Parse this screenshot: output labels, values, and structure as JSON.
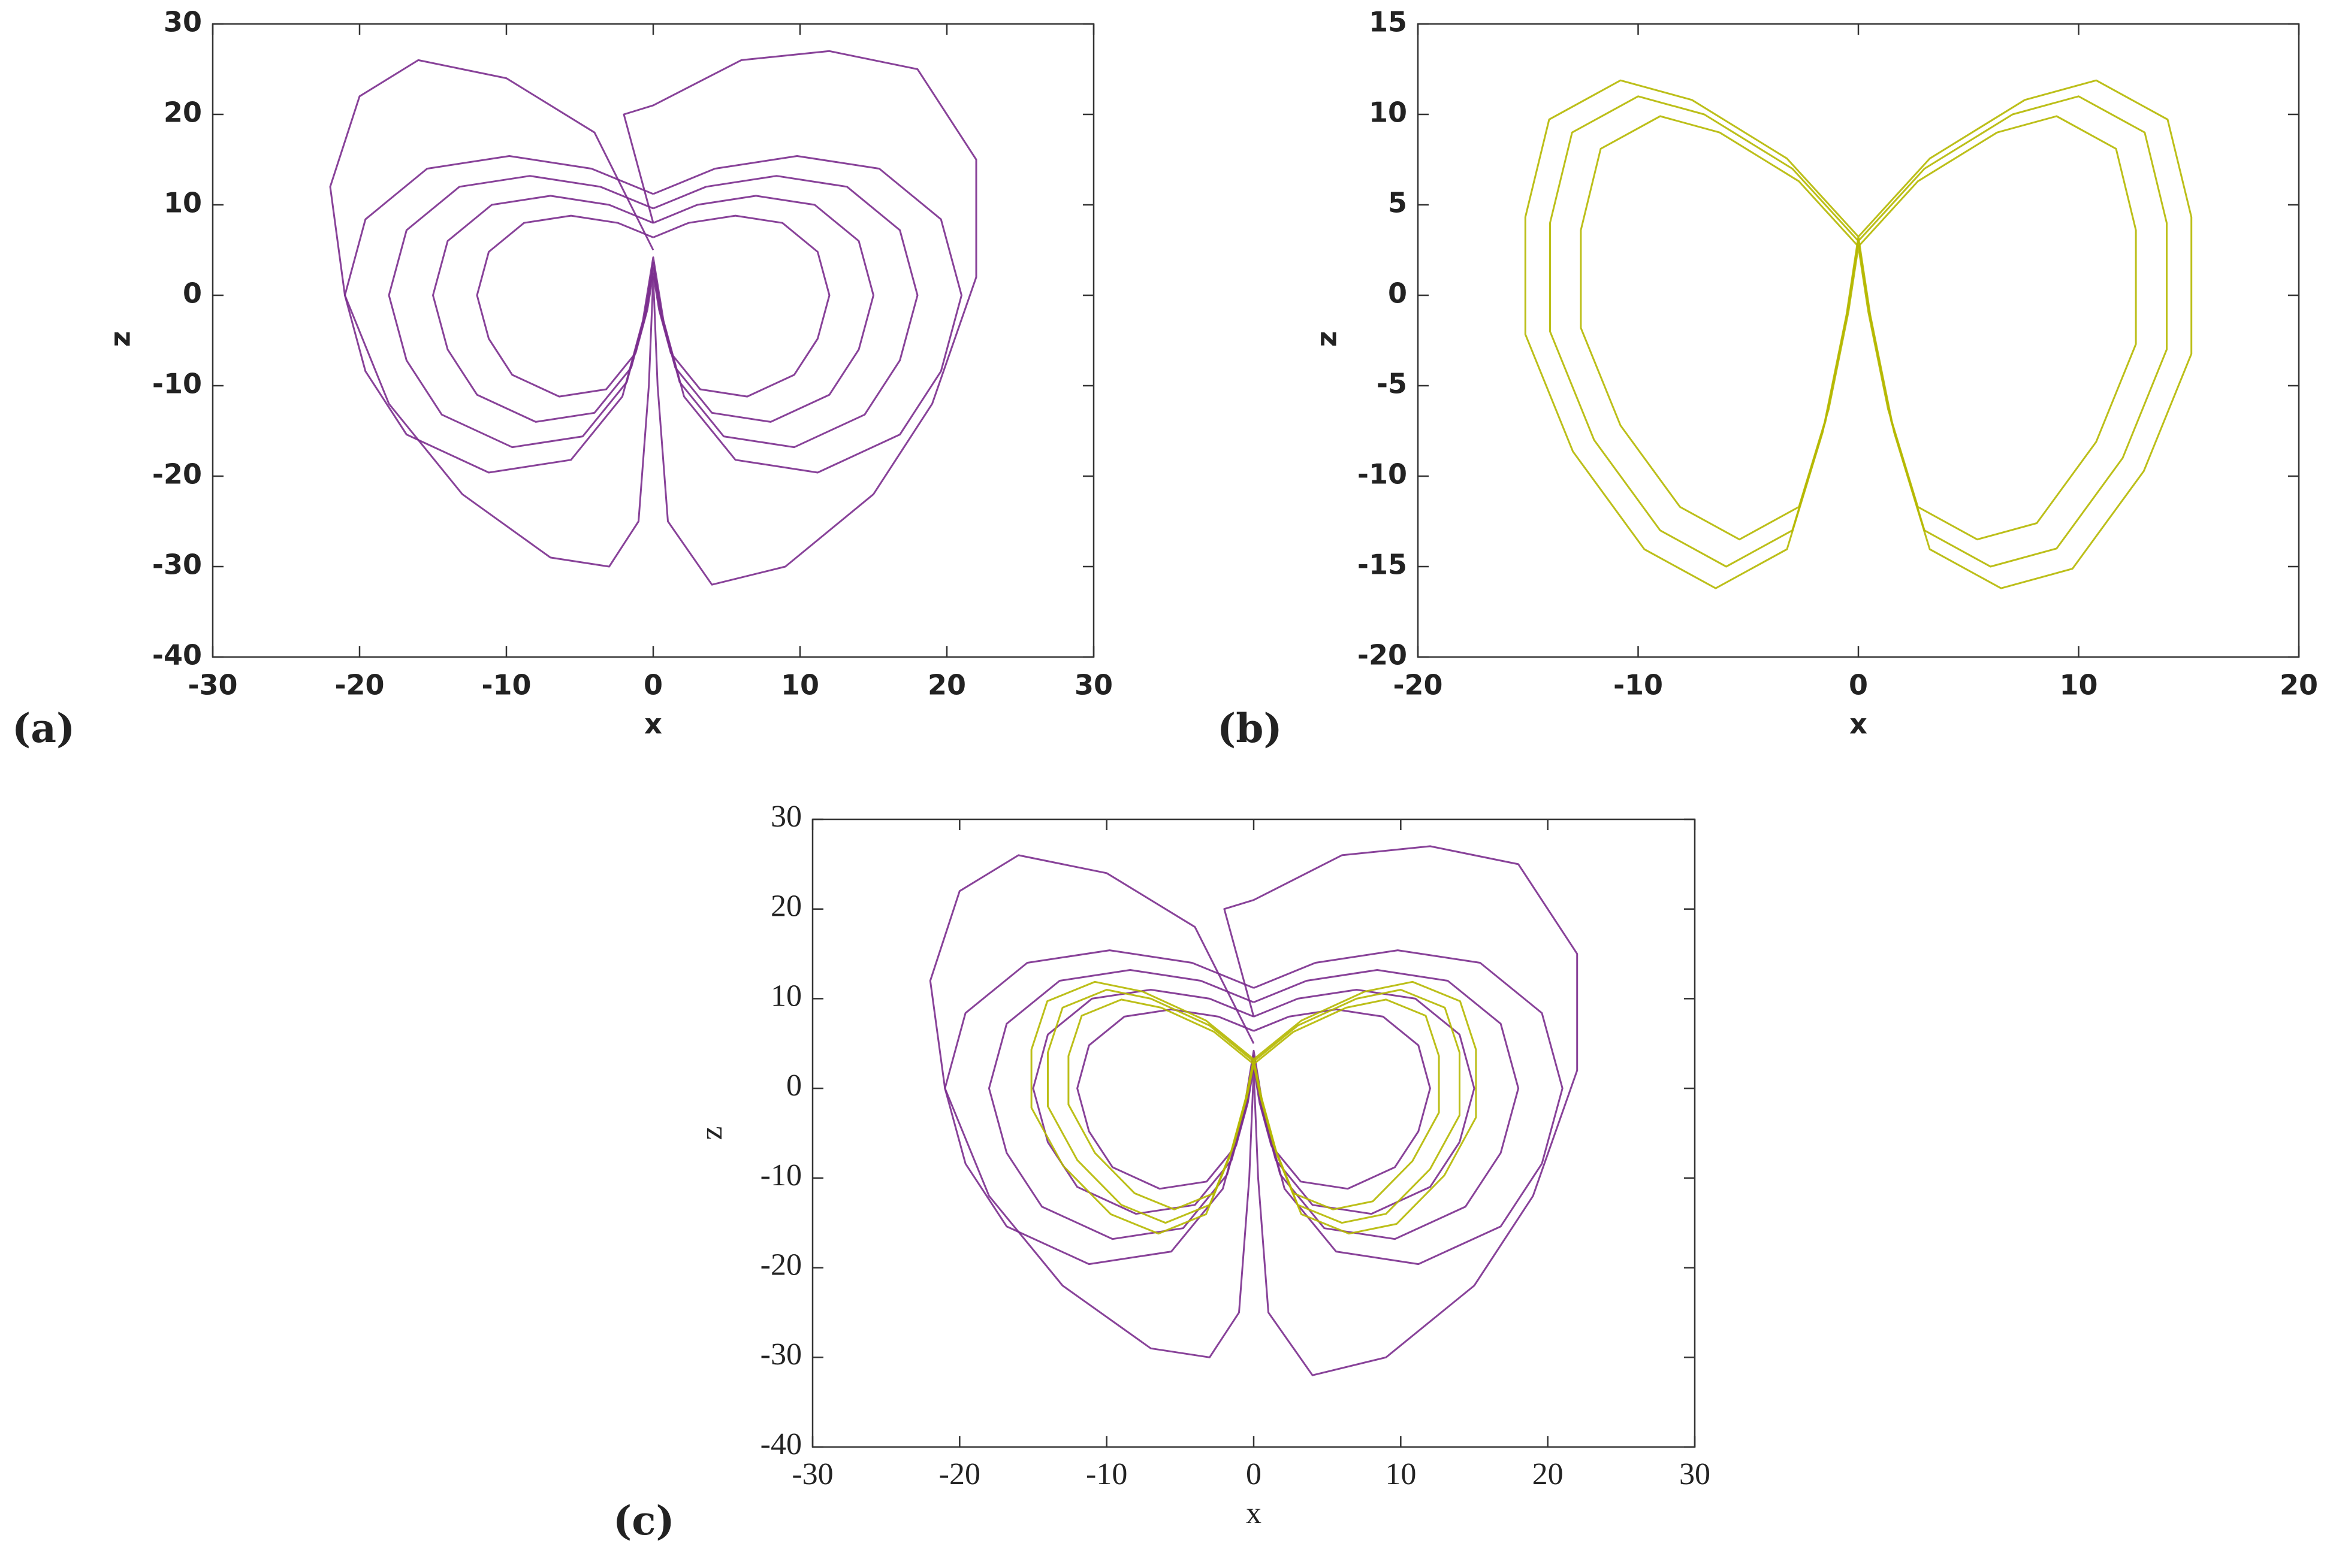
{
  "chart_data": [
    {
      "type": "line",
      "label": "(a)",
      "x_label": "x",
      "y_label": "z",
      "xlim": [
        -30,
        30
      ],
      "xticks": [
        -30,
        -20,
        -10,
        0,
        10,
        20,
        30
      ],
      "ylim": [
        -40,
        30
      ],
      "yticks": [
        -40,
        -30,
        -20,
        -10,
        0,
        10,
        20,
        30
      ],
      "series": [
        {
          "color": "#7b2d8e",
          "x": [
            0,
            -2.4,
            -5.6,
            -8.8,
            -11.2,
            -12,
            -11.2,
            -9.6,
            -6.4,
            -3.2,
            -1.2,
            -0.4,
            0,
            0.4,
            1.2,
            3.2,
            6.4,
            9.6,
            11.2,
            12,
            11.2,
            8.8,
            5.6,
            2.4,
            0
          ],
          "values": [
            6.4,
            8,
            8.8,
            8,
            4.8,
            0,
            -4.8,
            -8.8,
            -11.2,
            -10.4,
            -6.4,
            -1.6,
            2.4,
            -1.6,
            -6.4,
            -10.4,
            -11.2,
            -8.8,
            -4.8,
            0,
            4.8,
            8,
            8.8,
            8,
            6.4
          ]
        },
        {
          "color": "#7b2d8e",
          "x": [
            0,
            -3,
            -7,
            -11,
            -14,
            -15,
            -14,
            -12,
            -8,
            -4,
            -1.5,
            -0.5,
            0,
            0.5,
            1.5,
            4,
            8,
            12,
            14,
            15,
            14,
            11,
            7,
            3,
            0
          ],
          "values": [
            8,
            10,
            11,
            10,
            6,
            0,
            -6,
            -11,
            -14,
            -13,
            -8,
            -2,
            3,
            -2,
            -8,
            -13,
            -14,
            -11,
            -6,
            0,
            6,
            10,
            11,
            10,
            8
          ]
        },
        {
          "color": "#7b2d8e",
          "x": [
            0,
            -3.6,
            -8.4,
            -13.2,
            -16.8,
            -18,
            -16.8,
            -14.4,
            -9.6,
            -4.8,
            -1.8,
            -0.6,
            0,
            0.6,
            1.8,
            4.8,
            9.6,
            14.4,
            16.8,
            18,
            16.8,
            13.2,
            8.4,
            3.6,
            0
          ],
          "values": [
            9.6,
            12,
            13.2,
            12,
            7.2,
            0,
            -7.2,
            -13.2,
            -16.8,
            -15.6,
            -9.6,
            -2.4,
            3.6,
            -2.4,
            -9.6,
            -15.6,
            -16.8,
            -13.2,
            -7.2,
            0,
            7.2,
            12,
            13.2,
            12,
            9.6
          ]
        },
        {
          "color": "#7b2d8e",
          "x": [
            0,
            -4.2,
            -9.8,
            -15.4,
            -19.6,
            -21,
            -19.6,
            -16.8,
            -11.2,
            -5.6,
            -2.1,
            -0.7,
            0,
            0.7,
            2.1,
            5.6,
            11.2,
            16.8,
            19.6,
            21,
            19.6,
            15.4,
            9.8,
            4.2,
            0
          ],
          "values": [
            11.2,
            14,
            15.4,
            14,
            8.4,
            0,
            -8.4,
            -15.4,
            -19.6,
            -18.2,
            -11.2,
            -2.8,
            4.2,
            -2.8,
            -11.2,
            -18.2,
            -19.6,
            -15.4,
            -8.4,
            0,
            8.4,
            14,
            15.4,
            14,
            11.2
          ]
        },
        {
          "color": "#7b2d8e",
          "x": [
            0,
            -4,
            -10,
            -16,
            -20,
            -22,
            -21,
            -18,
            -13,
            -7,
            -3,
            -1,
            -0.3,
            0,
            0.3,
            1,
            4,
            9,
            15,
            19,
            22,
            22,
            18,
            12,
            6,
            0,
            -2,
            0
          ],
          "values": [
            5,
            18,
            24,
            26,
            22,
            12,
            0,
            -12,
            -22,
            -29,
            -30,
            -25,
            -10,
            2,
            -10,
            -25,
            -32,
            -30,
            -22,
            -12,
            2,
            15,
            25,
            27,
            26,
            21,
            20,
            8
          ]
        }
      ]
    },
    {
      "type": "line",
      "label": "(b)",
      "x_label": "x",
      "y_label": "z",
      "xlim": [
        -20,
        20
      ],
      "xticks": [
        -20,
        -10,
        0,
        10,
        20
      ],
      "ylim": [
        -20,
        15
      ],
      "yticks": [
        -20,
        -15,
        -10,
        -5,
        0,
        5,
        10,
        15
      ],
      "series": [
        {
          "color": "#b5b800",
          "x": [
            0,
            -2.7,
            -6.3,
            -9,
            -11.7,
            -12.6,
            -12.6,
            -10.8,
            -8.1,
            -5.4,
            -2.7,
            -1.35,
            -0.45,
            0,
            0.45,
            1.35,
            2.7,
            5.4,
            8.1,
            10.8,
            12.6,
            12.6,
            11.7,
            9,
            6.3,
            2.7,
            0
          ],
          "values": [
            2.7,
            6.3,
            9,
            9.9,
            8.1,
            3.6,
            -1.8,
            -7.2,
            -11.7,
            -13.5,
            -11.7,
            -6.3,
            -0.9,
            2.7,
            -0.9,
            -6.3,
            -11.7,
            -13.5,
            -12.6,
            -8.1,
            -2.7,
            3.6,
            8.1,
            9.9,
            9,
            6.3,
            2.7
          ]
        },
        {
          "color": "#b5b800",
          "x": [
            0,
            -3,
            -7,
            -10,
            -13,
            -14,
            -14,
            -12,
            -9,
            -6,
            -3,
            -1.5,
            -0.5,
            0,
            0.5,
            1.5,
            3,
            6,
            9,
            12,
            14,
            14,
            13,
            10,
            7,
            3,
            0
          ],
          "values": [
            3,
            7,
            10,
            11,
            9,
            4,
            -2,
            -8,
            -13,
            -15,
            -13,
            -7,
            -1,
            3,
            -1,
            -7,
            -13,
            -15,
            -14,
            -9,
            -3,
            4,
            9,
            11,
            10,
            7,
            3
          ]
        },
        {
          "color": "#b5b800",
          "x": [
            0,
            -3.24,
            -7.56,
            -10.8,
            -14.04,
            -15.12,
            -15.12,
            -12.96,
            -9.72,
            -6.48,
            -3.24,
            -1.62,
            -0.54,
            0,
            0.54,
            1.62,
            3.24,
            6.48,
            9.72,
            12.96,
            15.12,
            15.12,
            14.04,
            10.8,
            7.56,
            3.24,
            0
          ],
          "values": [
            3.24,
            7.56,
            10.8,
            11.88,
            9.72,
            4.32,
            -2.16,
            -8.64,
            -14.04,
            -16.2,
            -14.04,
            -7.56,
            -1.08,
            3.24,
            -1.08,
            -7.56,
            -14.04,
            -16.2,
            -15.12,
            -9.72,
            -3.24,
            4.32,
            9.72,
            11.88,
            10.8,
            7.56,
            3.24
          ]
        }
      ]
    },
    {
      "type": "line",
      "label": "(c)",
      "x_label": "x",
      "y_label": "z",
      "xlim": [
        -30,
        30
      ],
      "xticks": [
        -30,
        -20,
        -10,
        0,
        10,
        20,
        30
      ],
      "ylim": [
        -40,
        30
      ],
      "yticks": [
        -40,
        -30,
        -20,
        -10,
        0,
        10,
        20,
        30
      ],
      "series": [
        {
          "color": "#7b2d8e",
          "x": [
            0,
            -2.4,
            -5.6,
            -8.8,
            -11.2,
            -12,
            -11.2,
            -9.6,
            -6.4,
            -3.2,
            -1.2,
            -0.4,
            0,
            0.4,
            1.2,
            3.2,
            6.4,
            9.6,
            11.2,
            12,
            11.2,
            8.8,
            5.6,
            2.4,
            0
          ],
          "values": [
            6.4,
            8,
            8.8,
            8,
            4.8,
            0,
            -4.8,
            -8.8,
            -11.2,
            -10.4,
            -6.4,
            -1.6,
            2.4,
            -1.6,
            -6.4,
            -10.4,
            -11.2,
            -8.8,
            -4.8,
            0,
            4.8,
            8,
            8.8,
            8,
            6.4
          ]
        },
        {
          "color": "#7b2d8e",
          "x": [
            0,
            -3,
            -7,
            -11,
            -14,
            -15,
            -14,
            -12,
            -8,
            -4,
            -1.5,
            -0.5,
            0,
            0.5,
            1.5,
            4,
            8,
            12,
            14,
            15,
            14,
            11,
            7,
            3,
            0
          ],
          "values": [
            8,
            10,
            11,
            10,
            6,
            0,
            -6,
            -11,
            -14,
            -13,
            -8,
            -2,
            3,
            -2,
            -8,
            -13,
            -14,
            -11,
            -6,
            0,
            6,
            10,
            11,
            10,
            8
          ]
        },
        {
          "color": "#7b2d8e",
          "x": [
            0,
            -3.6,
            -8.4,
            -13.2,
            -16.8,
            -18,
            -16.8,
            -14.4,
            -9.6,
            -4.8,
            -1.8,
            -0.6,
            0,
            0.6,
            1.8,
            4.8,
            9.6,
            14.4,
            16.8,
            18,
            16.8,
            13.2,
            8.4,
            3.6,
            0
          ],
          "values": [
            9.6,
            12,
            13.2,
            12,
            7.2,
            0,
            -7.2,
            -13.2,
            -16.8,
            -15.6,
            -9.6,
            -2.4,
            3.6,
            -2.4,
            -9.6,
            -15.6,
            -16.8,
            -13.2,
            -7.2,
            0,
            7.2,
            12,
            13.2,
            12,
            9.6
          ]
        },
        {
          "color": "#7b2d8e",
          "x": [
            0,
            -4.2,
            -9.8,
            -15.4,
            -19.6,
            -21,
            -19.6,
            -16.8,
            -11.2,
            -5.6,
            -2.1,
            -0.7,
            0,
            0.7,
            2.1,
            5.6,
            11.2,
            16.8,
            19.6,
            21,
            19.6,
            15.4,
            9.8,
            4.2,
            0
          ],
          "values": [
            11.2,
            14,
            15.4,
            14,
            8.4,
            0,
            -8.4,
            -15.4,
            -19.6,
            -18.2,
            -11.2,
            -2.8,
            4.2,
            -2.8,
            -11.2,
            -18.2,
            -19.6,
            -15.4,
            -8.4,
            0,
            8.4,
            14,
            15.4,
            14,
            11.2
          ]
        },
        {
          "color": "#7b2d8e",
          "x": [
            0,
            -4,
            -10,
            -16,
            -20,
            -22,
            -21,
            -18,
            -13,
            -7,
            -3,
            -1,
            -0.3,
            0,
            0.3,
            1,
            4,
            9,
            15,
            19,
            22,
            22,
            18,
            12,
            6,
            0,
            -2,
            0
          ],
          "values": [
            5,
            18,
            24,
            26,
            22,
            12,
            0,
            -12,
            -22,
            -29,
            -30,
            -25,
            -10,
            2,
            -10,
            -25,
            -32,
            -30,
            -22,
            -12,
            2,
            15,
            25,
            27,
            26,
            21,
            20,
            8
          ]
        },
        {
          "color": "#b5b800",
          "x": [
            0,
            -2.7,
            -6.3,
            -9,
            -11.7,
            -12.6,
            -12.6,
            -10.8,
            -8.1,
            -5.4,
            -2.7,
            -1.35,
            -0.45,
            0,
            0.45,
            1.35,
            2.7,
            5.4,
            8.1,
            10.8,
            12.6,
            12.6,
            11.7,
            9,
            6.3,
            2.7,
            0
          ],
          "values": [
            2.7,
            6.3,
            9,
            9.9,
            8.1,
            3.6,
            -1.8,
            -7.2,
            -11.7,
            -13.5,
            -11.7,
            -6.3,
            -0.9,
            2.7,
            -0.9,
            -6.3,
            -11.7,
            -13.5,
            -12.6,
            -8.1,
            -2.7,
            3.6,
            8.1,
            9.9,
            9,
            6.3,
            2.7
          ]
        },
        {
          "color": "#b5b800",
          "x": [
            0,
            -3,
            -7,
            -10,
            -13,
            -14,
            -14,
            -12,
            -9,
            -6,
            -3,
            -1.5,
            -0.5,
            0,
            0.5,
            1.5,
            3,
            6,
            9,
            12,
            14,
            14,
            13,
            10,
            7,
            3,
            0
          ],
          "values": [
            3,
            7,
            10,
            11,
            9,
            4,
            -2,
            -8,
            -13,
            -15,
            -13,
            -7,
            -1,
            3,
            -1,
            -7,
            -13,
            -15,
            -14,
            -9,
            -3,
            4,
            9,
            11,
            10,
            7,
            3
          ]
        },
        {
          "color": "#b5b800",
          "x": [
            0,
            -3.24,
            -7.56,
            -10.8,
            -14.04,
            -15.12,
            -15.12,
            -12.96,
            -9.72,
            -6.48,
            -3.24,
            -1.62,
            -0.54,
            0,
            0.54,
            1.62,
            3.24,
            6.48,
            9.72,
            12.96,
            15.12,
            15.12,
            14.04,
            10.8,
            7.56,
            3.24,
            0
          ],
          "values": [
            3.24,
            7.56,
            10.8,
            11.88,
            9.72,
            4.32,
            -2.16,
            -8.64,
            -14.04,
            -16.2,
            -14.04,
            -7.56,
            -1.08,
            3.24,
            -1.08,
            -7.56,
            -14.04,
            -16.2,
            -15.12,
            -9.72,
            -3.24,
            4.32,
            9.72,
            11.88,
            10.8,
            7.56,
            3.24
          ]
        }
      ]
    }
  ]
}
